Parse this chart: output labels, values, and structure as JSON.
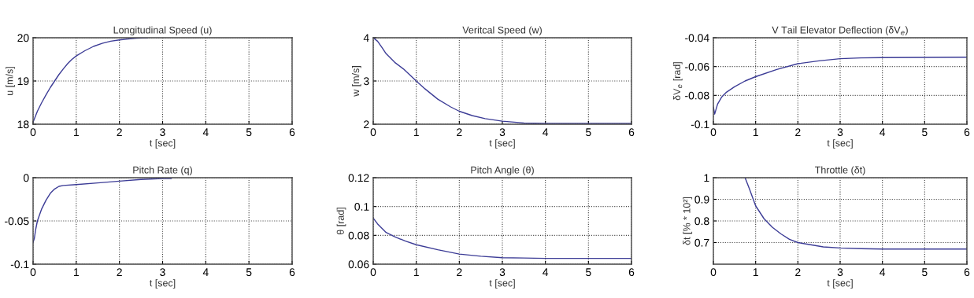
{
  "chart_data": [
    {
      "type": "line",
      "title": "Longitudinal Speed (u)",
      "xlabel": "t [sec]",
      "ylabel": "u [m/s]",
      "x": [
        0,
        0.1,
        0.2,
        0.3,
        0.4,
        0.5,
        0.6,
        0.7,
        0.8,
        0.9,
        1.0,
        1.2,
        1.4,
        1.6,
        1.8,
        2.0,
        2.2,
        2.4,
        2.65
      ],
      "series": [
        {
          "color": "#3c3c96",
          "values": [
            18.05,
            18.3,
            18.5,
            18.68,
            18.85,
            19.0,
            19.15,
            19.28,
            19.4,
            19.5,
            19.58,
            19.7,
            19.8,
            19.87,
            19.92,
            19.95,
            19.97,
            19.99,
            20.0
          ]
        }
      ],
      "xlim": [
        0,
        6
      ],
      "ylim": [
        18,
        20
      ],
      "xticks": [
        0,
        1,
        2,
        3,
        4,
        5,
        6
      ],
      "yticks": [
        18,
        19,
        20
      ],
      "grid": true
    },
    {
      "type": "line",
      "title": "Veritcal Speed (w)",
      "xlabel": "t [sec]",
      "ylabel": "w [m/s]",
      "x": [
        0,
        0.1,
        0.2,
        0.3,
        0.4,
        0.5,
        0.7,
        1.0,
        1.2,
        1.5,
        1.8,
        2.0,
        2.3,
        2.6,
        3.0,
        3.5,
        4,
        5,
        6
      ],
      "series": [
        {
          "color": "#3c3c96",
          "values": [
            4,
            3.92,
            3.78,
            3.63,
            3.53,
            3.43,
            3.28,
            3.0,
            2.82,
            2.58,
            2.4,
            2.3,
            2.2,
            2.13,
            2.07,
            2.03,
            2.02,
            2.02,
            2.02
          ]
        }
      ],
      "xlim": [
        0,
        6
      ],
      "ylim": [
        2,
        4
      ],
      "xticks": [
        0,
        1,
        2,
        3,
        4,
        5,
        6
      ],
      "yticks": [
        2,
        3,
        4
      ],
      "grid": true
    },
    {
      "type": "line",
      "title": "V Tail Elevator Deflection (δV$_{e}$)",
      "xlabel": "t [sec]",
      "ylabel": "δV$_{e}$ [rad]",
      "x": [
        0,
        0.03,
        0.06,
        0.1,
        0.2,
        0.3,
        0.5,
        0.75,
        1.0,
        1.5,
        2.0,
        2.5,
        3.0,
        3.5,
        4,
        5,
        6
      ],
      "series": [
        {
          "color": "#3c3c96",
          "values": [
            -0.088,
            -0.093,
            -0.09,
            -0.086,
            -0.081,
            -0.078,
            -0.074,
            -0.07,
            -0.067,
            -0.062,
            -0.058,
            -0.056,
            -0.0545,
            -0.054,
            -0.0538,
            -0.0536,
            -0.0535
          ]
        }
      ],
      "xlim": [
        0,
        6
      ],
      "ylim": [
        -0.1,
        -0.04
      ],
      "xticks": [
        0,
        1,
        2,
        3,
        4,
        5,
        6
      ],
      "yticks": [
        -0.1,
        -0.08,
        -0.06,
        -0.04
      ],
      "grid": true
    },
    {
      "type": "line",
      "title": "Pitch Rate (q)",
      "xlabel": "t [sec]",
      "x": [
        0,
        0.03,
        0.06,
        0.1,
        0.15,
        0.2,
        0.3,
        0.4,
        0.5,
        0.6,
        0.7,
        1.0,
        1.5,
        2.0,
        2.5,
        3.0,
        3.2
      ],
      "series": [
        {
          "color": "#3c3c96",
          "values": [
            -0.075,
            -0.07,
            -0.06,
            -0.05,
            -0.043,
            -0.036,
            -0.026,
            -0.018,
            -0.013,
            -0.01,
            -0.009,
            -0.008,
            -0.006,
            -0.004,
            -0.002,
            -0.001,
            -0.001
          ]
        }
      ],
      "xlim": [
        0,
        6
      ],
      "ylim": [
        -0.1,
        0
      ],
      "xticks": [
        0,
        1,
        2,
        3,
        4,
        5,
        6
      ],
      "yticks": [
        -0.1,
        -0.05,
        0
      ],
      "grid": true
    },
    {
      "type": "line",
      "title": "Pitch Angle (θ)",
      "xlabel": "t [sec]",
      "ylabel": "θ [rad]",
      "x": [
        0,
        0.1,
        0.2,
        0.3,
        0.5,
        0.75,
        1.0,
        1.5,
        2.0,
        2.5,
        3,
        3.5,
        4,
        6
      ],
      "series": [
        {
          "color": "#3c3c96",
          "values": [
            0.092,
            0.088,
            0.085,
            0.082,
            0.079,
            0.076,
            0.0735,
            0.07,
            0.067,
            0.0655,
            0.0645,
            0.0643,
            0.064,
            0.064
          ]
        }
      ],
      "xlim": [
        0,
        6
      ],
      "ylim": [
        0.06,
        0.12
      ],
      "xticks": [
        0,
        1,
        2,
        3,
        4,
        5,
        6
      ],
      "yticks": [
        0.06,
        0.08,
        0.1,
        0.12
      ],
      "grid": true
    },
    {
      "type": "line",
      "title": "Throttle (δt)",
      "xlabel": "t [sec]",
      "ylabel": "δt [% * 10²]",
      "x": [
        0.75,
        0.85,
        1.0,
        1.2,
        1.4,
        1.6,
        1.8,
        2.0,
        2.3,
        2.6,
        3.0,
        3.5,
        4,
        5,
        6
      ],
      "series": [
        {
          "color": "#3c3c96",
          "values": [
            1.0,
            0.95,
            0.87,
            0.81,
            0.77,
            0.74,
            0.715,
            0.7,
            0.69,
            0.68,
            0.675,
            0.672,
            0.67,
            0.67,
            0.67
          ]
        }
      ],
      "xlim": [
        0,
        6
      ],
      "ylim": [
        0.6,
        1
      ],
      "xticks": [
        0,
        1,
        2,
        3,
        4,
        5,
        6
      ],
      "yticks": [
        0.7,
        0.8,
        0.9,
        1
      ],
      "grid": true
    }
  ]
}
